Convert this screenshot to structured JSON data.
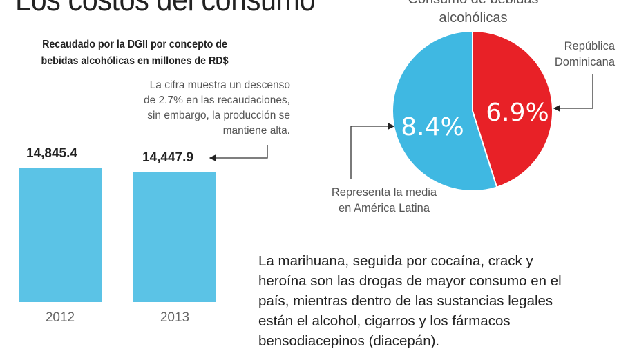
{
  "title": "Los costos del consumo",
  "chart_data": [
    {
      "type": "bar",
      "title": "Recaudado por la DGII por concepto de bebidas alcohólicas en millones de RD$",
      "categories": [
        "2012",
        "2013"
      ],
      "values": [
        14845.4,
        14447.9
      ],
      "value_labels": [
        "14,845.4",
        "14,447.9"
      ],
      "ylim": [
        0,
        15300
      ],
      "color": "#5bc3e6",
      "annotation": [
        "La cifra muestra un descenso",
        "de 2.7% en las recaudaciones,",
        "sin embargo, la producción se",
        "mantiene alta."
      ]
    },
    {
      "type": "pie",
      "title": [
        "Consumo de bebidas",
        "alcohólicas"
      ],
      "slices": [
        {
          "label": "República Dominicana",
          "label_lines": [
            "República",
            "Dominicana"
          ],
          "value": 6.9,
          "value_label": "6.9%",
          "color": "#e82127"
        },
        {
          "label": "Representa la media en América Latina",
          "label_lines": [
            "Representa la media",
            "en América Latina"
          ],
          "value": 8.4,
          "value_label": "8.4%",
          "color": "#3fb8e2"
        }
      ]
    }
  ],
  "paragraph": [
    "La marihuana, seguida por cocaína, crack y",
    "heroína son las drogas de mayor consumo en el",
    "país, mientras dentro de las sustancias legales",
    "están el alcohol, cigarros y los fármacos",
    "bensodiacepinos (diacepán)."
  ]
}
